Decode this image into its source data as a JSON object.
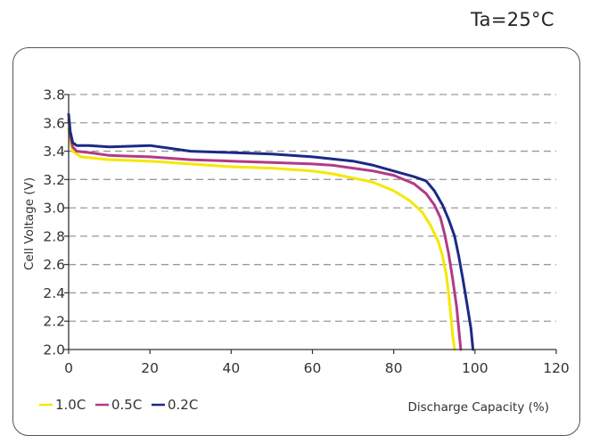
{
  "condition_label": "Ta=25°C",
  "chart_data": {
    "type": "line",
    "xlabel": "Discharge Capacity (%)",
    "ylabel": "Cell Voltage (V)",
    "xlim": [
      0,
      120
    ],
    "ylim": [
      2.0,
      3.8
    ],
    "x_ticks": [
      "0",
      "20",
      "40",
      "60",
      "80",
      "100",
      "120"
    ],
    "y_ticks": [
      "2.0",
      "2.2",
      "2.4",
      "2.6",
      "2.8",
      "3.0",
      "3.2",
      "3.4",
      "3.6",
      "3.8"
    ],
    "grid": "horizontal dashed",
    "legend_position": "bottom-left",
    "series": [
      {
        "name": "1.0C",
        "color": "#f4e800",
        "points": [
          [
            0,
            3.56
          ],
          [
            0.5,
            3.45
          ],
          [
            1,
            3.4
          ],
          [
            2,
            3.38
          ],
          [
            3,
            3.36
          ],
          [
            10,
            3.34
          ],
          [
            20,
            3.33
          ],
          [
            30,
            3.31
          ],
          [
            40,
            3.29
          ],
          [
            50,
            3.28
          ],
          [
            60,
            3.26
          ],
          [
            65,
            3.24
          ],
          [
            70,
            3.21
          ],
          [
            75,
            3.18
          ],
          [
            80,
            3.12
          ],
          [
            84,
            3.05
          ],
          [
            87,
            2.97
          ],
          [
            89,
            2.88
          ],
          [
            91,
            2.76
          ],
          [
            92,
            2.66
          ],
          [
            93,
            2.52
          ],
          [
            93.5,
            2.4
          ],
          [
            94,
            2.26
          ],
          [
            94.5,
            2.1
          ],
          [
            95,
            2.0
          ]
        ]
      },
      {
        "name": "0.5C",
        "color": "#b23a86",
        "points": [
          [
            0,
            3.62
          ],
          [
            0.5,
            3.5
          ],
          [
            1,
            3.43
          ],
          [
            2,
            3.4
          ],
          [
            5,
            3.39
          ],
          [
            10,
            3.37
          ],
          [
            20,
            3.36
          ],
          [
            30,
            3.34
          ],
          [
            40,
            3.33
          ],
          [
            50,
            3.32
          ],
          [
            60,
            3.31
          ],
          [
            65,
            3.3
          ],
          [
            70,
            3.28
          ],
          [
            75,
            3.26
          ],
          [
            80,
            3.23
          ],
          [
            85,
            3.17
          ],
          [
            88,
            3.1
          ],
          [
            90,
            3.02
          ],
          [
            91.5,
            2.93
          ],
          [
            92.5,
            2.82
          ],
          [
            93.5,
            2.68
          ],
          [
            94.5,
            2.5
          ],
          [
            95.5,
            2.3
          ],
          [
            96,
            2.15
          ],
          [
            96.5,
            2.0
          ]
        ]
      },
      {
        "name": "0.2C",
        "color": "#1c2a86",
        "points": [
          [
            0,
            3.66
          ],
          [
            0.4,
            3.54
          ],
          [
            1,
            3.46
          ],
          [
            2,
            3.44
          ],
          [
            5,
            3.44
          ],
          [
            10,
            3.43
          ],
          [
            20,
            3.44
          ],
          [
            25,
            3.42
          ],
          [
            30,
            3.4
          ],
          [
            40,
            3.39
          ],
          [
            50,
            3.38
          ],
          [
            60,
            3.36
          ],
          [
            70,
            3.33
          ],
          [
            75,
            3.3
          ],
          [
            80,
            3.26
          ],
          [
            85,
            3.22
          ],
          [
            88,
            3.19
          ],
          [
            90,
            3.12
          ],
          [
            92,
            3.02
          ],
          [
            93.5,
            2.92
          ],
          [
            95,
            2.8
          ],
          [
            96,
            2.66
          ],
          [
            97,
            2.5
          ],
          [
            98,
            2.33
          ],
          [
            99,
            2.15
          ],
          [
            99.5,
            2.0
          ]
        ]
      }
    ]
  }
}
